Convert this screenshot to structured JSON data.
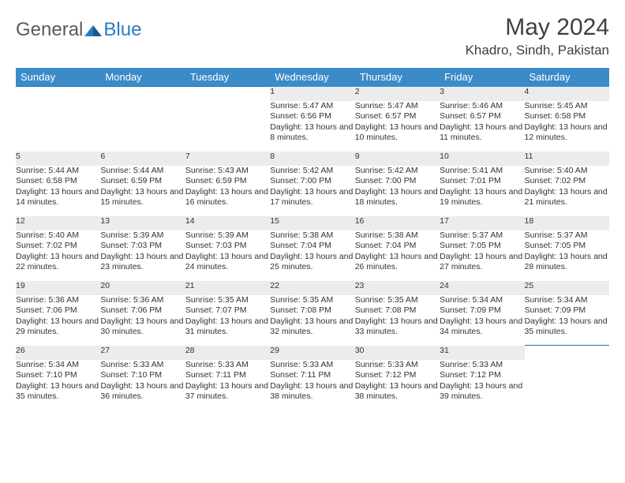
{
  "logo": {
    "general": "General",
    "blue": "Blue"
  },
  "title": "May 2024",
  "location": "Khadro, Sindh, Pakistan",
  "colors": {
    "header_bg": "#3b8bc9",
    "header_text": "#ffffff",
    "daynum_bg": "#ececec",
    "border": "#2b6ca3",
    "logo_gray": "#5a5a5a",
    "logo_blue": "#2b7bbf"
  },
  "day_headers": [
    "Sunday",
    "Monday",
    "Tuesday",
    "Wednesday",
    "Thursday",
    "Friday",
    "Saturday"
  ],
  "weeks": [
    {
      "nums": [
        "",
        "",
        "",
        "1",
        "2",
        "3",
        "4"
      ],
      "cells": [
        null,
        null,
        null,
        {
          "sunrise": "5:47 AM",
          "sunset": "6:56 PM",
          "daylight": "13 hours and 8 minutes."
        },
        {
          "sunrise": "5:47 AM",
          "sunset": "6:57 PM",
          "daylight": "13 hours and 10 minutes."
        },
        {
          "sunrise": "5:46 AM",
          "sunset": "6:57 PM",
          "daylight": "13 hours and 11 minutes."
        },
        {
          "sunrise": "5:45 AM",
          "sunset": "6:58 PM",
          "daylight": "13 hours and 12 minutes."
        }
      ]
    },
    {
      "nums": [
        "5",
        "6",
        "7",
        "8",
        "9",
        "10",
        "11"
      ],
      "cells": [
        {
          "sunrise": "5:44 AM",
          "sunset": "6:58 PM",
          "daylight": "13 hours and 14 minutes."
        },
        {
          "sunrise": "5:44 AM",
          "sunset": "6:59 PM",
          "daylight": "13 hours and 15 minutes."
        },
        {
          "sunrise": "5:43 AM",
          "sunset": "6:59 PM",
          "daylight": "13 hours and 16 minutes."
        },
        {
          "sunrise": "5:42 AM",
          "sunset": "7:00 PM",
          "daylight": "13 hours and 17 minutes."
        },
        {
          "sunrise": "5:42 AM",
          "sunset": "7:00 PM",
          "daylight": "13 hours and 18 minutes."
        },
        {
          "sunrise": "5:41 AM",
          "sunset": "7:01 PM",
          "daylight": "13 hours and 19 minutes."
        },
        {
          "sunrise": "5:40 AM",
          "sunset": "7:02 PM",
          "daylight": "13 hours and 21 minutes."
        }
      ]
    },
    {
      "nums": [
        "12",
        "13",
        "14",
        "15",
        "16",
        "17",
        "18"
      ],
      "cells": [
        {
          "sunrise": "5:40 AM",
          "sunset": "7:02 PM",
          "daylight": "13 hours and 22 minutes."
        },
        {
          "sunrise": "5:39 AM",
          "sunset": "7:03 PM",
          "daylight": "13 hours and 23 minutes."
        },
        {
          "sunrise": "5:39 AM",
          "sunset": "7:03 PM",
          "daylight": "13 hours and 24 minutes."
        },
        {
          "sunrise": "5:38 AM",
          "sunset": "7:04 PM",
          "daylight": "13 hours and 25 minutes."
        },
        {
          "sunrise": "5:38 AM",
          "sunset": "7:04 PM",
          "daylight": "13 hours and 26 minutes."
        },
        {
          "sunrise": "5:37 AM",
          "sunset": "7:05 PM",
          "daylight": "13 hours and 27 minutes."
        },
        {
          "sunrise": "5:37 AM",
          "sunset": "7:05 PM",
          "daylight": "13 hours and 28 minutes."
        }
      ]
    },
    {
      "nums": [
        "19",
        "20",
        "21",
        "22",
        "23",
        "24",
        "25"
      ],
      "cells": [
        {
          "sunrise": "5:36 AM",
          "sunset": "7:06 PM",
          "daylight": "13 hours and 29 minutes."
        },
        {
          "sunrise": "5:36 AM",
          "sunset": "7:06 PM",
          "daylight": "13 hours and 30 minutes."
        },
        {
          "sunrise": "5:35 AM",
          "sunset": "7:07 PM",
          "daylight": "13 hours and 31 minutes."
        },
        {
          "sunrise": "5:35 AM",
          "sunset": "7:08 PM",
          "daylight": "13 hours and 32 minutes."
        },
        {
          "sunrise": "5:35 AM",
          "sunset": "7:08 PM",
          "daylight": "13 hours and 33 minutes."
        },
        {
          "sunrise": "5:34 AM",
          "sunset": "7:09 PM",
          "daylight": "13 hours and 34 minutes."
        },
        {
          "sunrise": "5:34 AM",
          "sunset": "7:09 PM",
          "daylight": "13 hours and 35 minutes."
        }
      ]
    },
    {
      "nums": [
        "26",
        "27",
        "28",
        "29",
        "30",
        "31",
        ""
      ],
      "cells": [
        {
          "sunrise": "5:34 AM",
          "sunset": "7:10 PM",
          "daylight": "13 hours and 35 minutes."
        },
        {
          "sunrise": "5:33 AM",
          "sunset": "7:10 PM",
          "daylight": "13 hours and 36 minutes."
        },
        {
          "sunrise": "5:33 AM",
          "sunset": "7:11 PM",
          "daylight": "13 hours and 37 minutes."
        },
        {
          "sunrise": "5:33 AM",
          "sunset": "7:11 PM",
          "daylight": "13 hours and 38 minutes."
        },
        {
          "sunrise": "5:33 AM",
          "sunset": "7:12 PM",
          "daylight": "13 hours and 38 minutes."
        },
        {
          "sunrise": "5:33 AM",
          "sunset": "7:12 PM",
          "daylight": "13 hours and 39 minutes."
        },
        null
      ]
    }
  ],
  "labels": {
    "sunrise": "Sunrise:",
    "sunset": "Sunset:",
    "daylight": "Daylight:"
  }
}
